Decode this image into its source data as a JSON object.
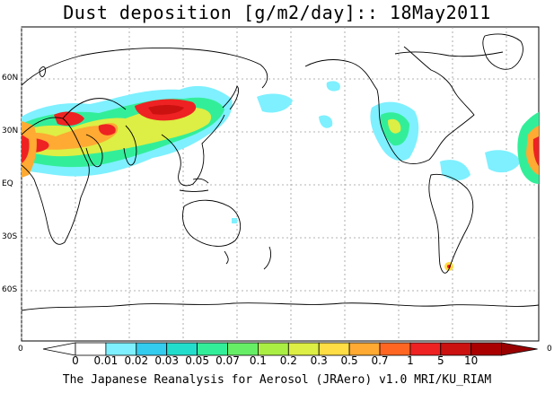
{
  "title": "Dust deposition [g/m2/day]:: 18May2011",
  "lat_labels": [
    "60N",
    "30N",
    "EQ",
    "30S",
    "60S"
  ],
  "edge_left": "0",
  "edge_right": "0",
  "colorbar": {
    "labels": [
      "0",
      "0.01",
      "0.02",
      "0.03",
      "0.05",
      "0.07",
      "0.1",
      "0.2",
      "0.3",
      "0.5",
      "0.7",
      "1",
      "5",
      "10"
    ],
    "colors": [
      "#ffffff",
      "#ffffff",
      "#7ef0ff",
      "#33ccee",
      "#22ddcc",
      "#33ee99",
      "#66ee66",
      "#aaee44",
      "#ddee44",
      "#ffdd44",
      "#ffaa33",
      "#ff6622",
      "#ee2222",
      "#cc1111",
      "#aa0000",
      "#990000"
    ]
  },
  "credit": "The Japanese Reanalysis for Aerosol (JRAero) v1.0 MRI/KU_RIAM"
}
